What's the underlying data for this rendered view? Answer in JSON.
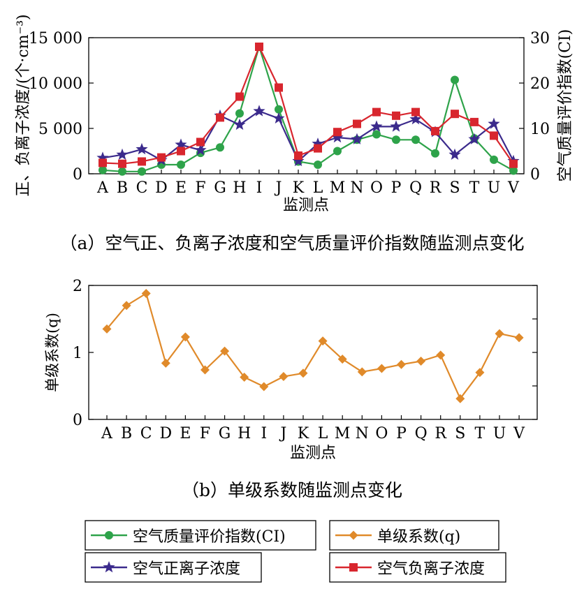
{
  "captions": {
    "a": "（a）空气正、负离子浓度和空气质量评价指数随监测点变化",
    "b": "（b）单级系数随监测点变化"
  },
  "legend": {
    "ci": "空气质量评价指数(CI)",
    "q": "单级系数(q)",
    "pos": "空气正离子浓度",
    "neg": "空气负离子浓度"
  },
  "colors": {
    "ci": "#2ea34a",
    "pos": "#3b2a8c",
    "neg": "#d8262e",
    "q": "#e08a2a"
  },
  "chart_data": [
    {
      "type": "line",
      "categories": [
        "A",
        "B",
        "C",
        "D",
        "E",
        "F",
        "G",
        "H",
        "I",
        "J",
        "K",
        "L",
        "M",
        "N",
        "O",
        "P",
        "Q",
        "R",
        "S",
        "T",
        "U",
        "V"
      ],
      "xlabel": "监测点",
      "ylabel": "正、负离子浓度/(个·cm⁻³)",
      "ylabel_right": "空气质量评价指数(CI)",
      "ylim": [
        0,
        15000
      ],
      "ylim_right": [
        0,
        30
      ],
      "yticks": [
        0,
        5000,
        10000,
        15000
      ],
      "ytick_labels": [
        "0",
        "5 000",
        "10 000",
        "15 000"
      ],
      "yticks_right": [
        0,
        10,
        20,
        30
      ],
      "ytick_labels_right": [
        "0",
        "10",
        "20",
        "30"
      ],
      "series": [
        {
          "name": "空气质量评价指数(CI)",
          "axis": "right",
          "marker": "circle",
          "color_key": "ci",
          "values": [
            0.8,
            0.5,
            0.5,
            2.0,
            2.0,
            4.6,
            5.8,
            13.3,
            28.0,
            14.2,
            2.7,
            2.0,
            5.0,
            7.5,
            8.7,
            7.5,
            7.5,
            4.5,
            20.7,
            7.8,
            3.1,
            0.7
          ]
        },
        {
          "name": "空气正离子浓度",
          "axis": "left",
          "marker": "star",
          "color_key": "pos",
          "values": [
            1750,
            2100,
            2700,
            1500,
            3200,
            2600,
            6400,
            5400,
            6900,
            6100,
            1400,
            3300,
            4000,
            3800,
            5200,
            5200,
            6000,
            4600,
            2100,
            3800,
            5500,
            1400
          ]
        },
        {
          "name": "空气负离子浓度",
          "axis": "left",
          "marker": "square",
          "color_key": "neg",
          "values": [
            1200,
            1100,
            1350,
            1800,
            2500,
            3500,
            6200,
            8500,
            14000,
            9500,
            2000,
            2800,
            4600,
            5500,
            6800,
            6400,
            6800,
            4700,
            6600,
            5700,
            4200,
            1100
          ]
        }
      ]
    },
    {
      "type": "line",
      "categories": [
        "A",
        "B",
        "C",
        "D",
        "E",
        "F",
        "G",
        "H",
        "I",
        "J",
        "K",
        "L",
        "M",
        "N",
        "O",
        "P",
        "Q",
        "R",
        "S",
        "T",
        "U",
        "V"
      ],
      "xlabel": "监测点",
      "ylabel": "单级系数(q)",
      "ylim": [
        0,
        2
      ],
      "yticks": [
        0,
        1,
        2
      ],
      "ytick_labels": [
        "0",
        "1",
        "2"
      ],
      "series": [
        {
          "name": "单级系数(q)",
          "marker": "diamond",
          "color_key": "q",
          "values": [
            1.35,
            1.7,
            1.88,
            0.84,
            1.23,
            0.74,
            1.02,
            0.63,
            0.49,
            0.64,
            0.69,
            1.17,
            0.9,
            0.71,
            0.76,
            0.82,
            0.87,
            0.96,
            0.31,
            0.7,
            1.28,
            1.22
          ]
        }
      ]
    }
  ]
}
